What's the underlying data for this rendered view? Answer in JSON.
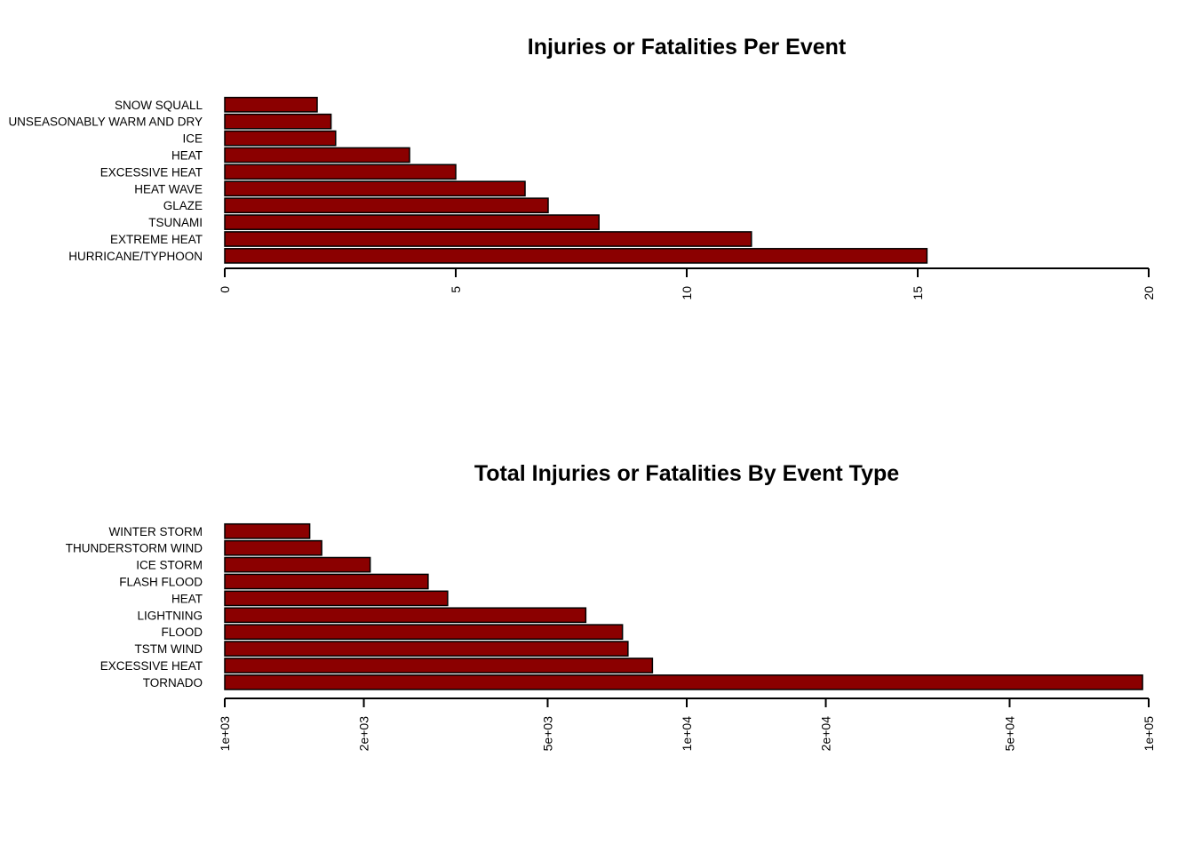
{
  "chart_data": [
    {
      "type": "bar",
      "orientation": "horizontal",
      "title": "Injuries or Fatalities Per Event",
      "xlabel": "",
      "ylabel": "",
      "scale": "linear",
      "xlim": [
        0,
        20
      ],
      "ticks": [
        0,
        5,
        10,
        15,
        20
      ],
      "tick_labels": [
        "0",
        "5",
        "10",
        "15",
        "20"
      ],
      "categories": [
        "HURRICANE/TYPHOON",
        "EXTREME HEAT",
        "TSUNAMI",
        "GLAZE",
        "HEAT WAVE",
        "EXCESSIVE HEAT",
        "HEAT",
        "ICE",
        "UNSEASONABLY WARM AND DRY",
        "SNOW SQUALL"
      ],
      "values": [
        15.2,
        11.4,
        8.1,
        7.0,
        6.5,
        5.0,
        4.0,
        2.4,
        2.3,
        2.0
      ],
      "bar_color": "#8b0000"
    },
    {
      "type": "bar",
      "orientation": "horizontal",
      "title": "Total Injuries or Fatalities By Event Type",
      "xlabel": "",
      "ylabel": "",
      "scale": "log",
      "xlim": [
        1000,
        100000
      ],
      "ticks": [
        1000,
        2000,
        5000,
        10000,
        20000,
        50000,
        100000
      ],
      "tick_labels": [
        "1e+03",
        "2e+03",
        "5e+03",
        "1e+04",
        "2e+04",
        "5e+04",
        "1e+05"
      ],
      "categories": [
        "TORNADO",
        "EXCESSIVE HEAT",
        "TSTM WIND",
        "FLOOD",
        "LIGHTNING",
        "HEAT",
        "FLASH FLOOD",
        "ICE STORM",
        "THUNDERSTORM WIND",
        "WINTER STORM"
      ],
      "values": [
        96979,
        8428,
        7461,
        7259,
        6046,
        3037,
        2755,
        2064,
        1621,
        1527
      ],
      "bar_color": "#8b0000"
    }
  ]
}
